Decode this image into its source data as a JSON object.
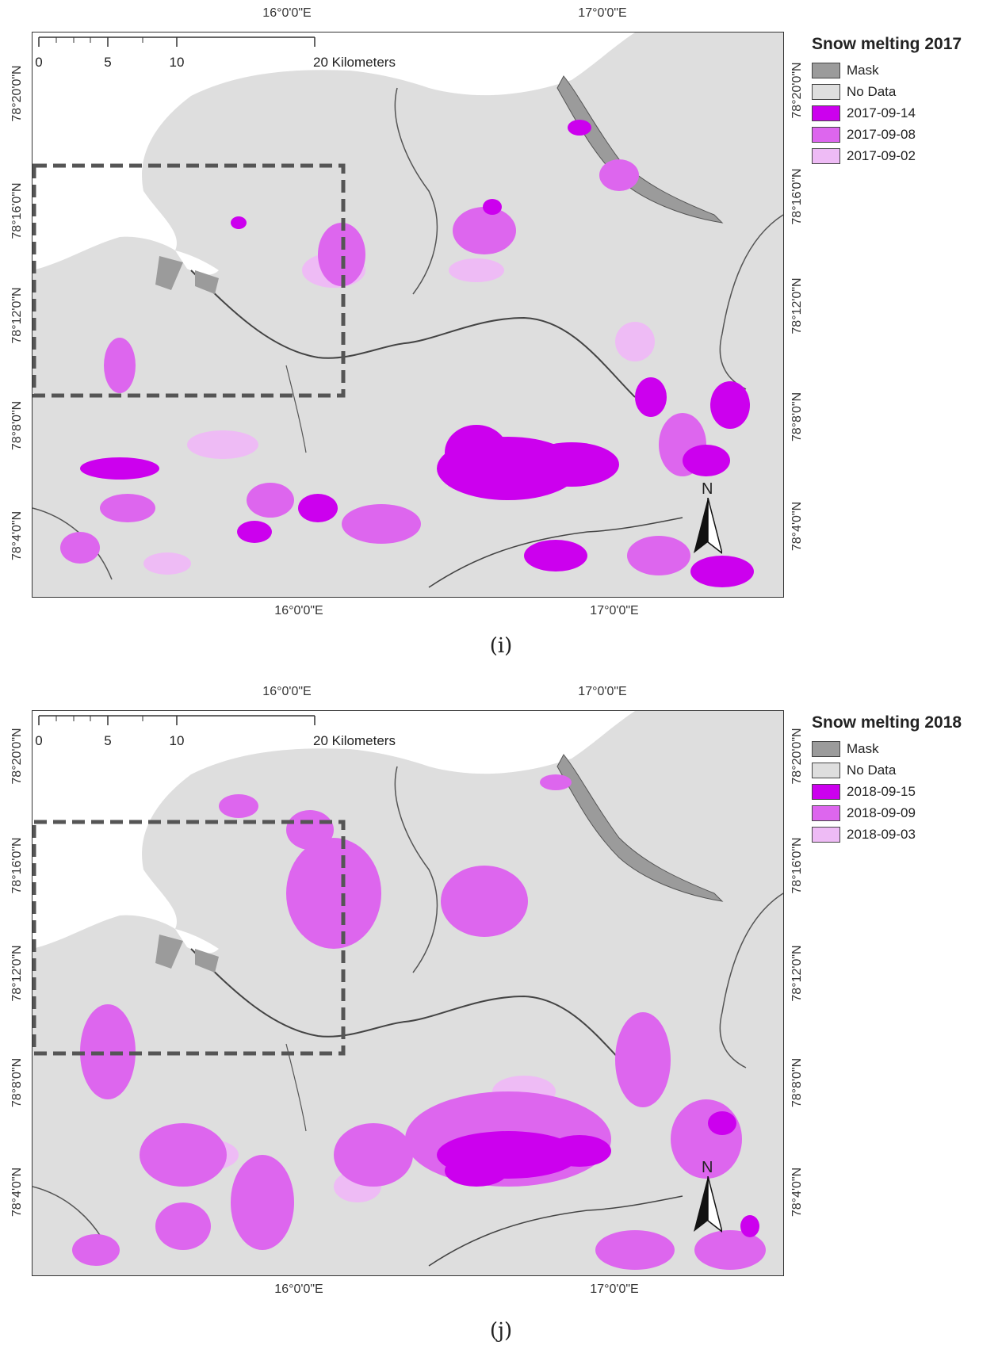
{
  "panels": [
    {
      "caption": "(i)",
      "legend": {
        "title": "Snow melting 2017",
        "items": [
          {
            "label": "Mask",
            "color": "#9b9b9b"
          },
          {
            "label": "No Data",
            "color": "#dedede"
          },
          {
            "label": "2017-09-14",
            "color": "#cc00ee"
          },
          {
            "label": "2017-09-08",
            "color": "#dd66ee"
          },
          {
            "label": "2017-09-02",
            "color": "#eebbf5"
          }
        ]
      },
      "lon_labels": [
        "16°0'0\"E",
        "17°0'0\"E"
      ],
      "lat_labels": [
        "78°20'0\"N",
        "78°16'0\"N",
        "78°12'0\"N",
        "78°8'0\"N",
        "78°4'0\"N"
      ],
      "scalebar": {
        "ticks": [
          "0",
          "5",
          "10",
          "20 Kilometers"
        ]
      },
      "north_label": "N"
    },
    {
      "caption": "(j)",
      "legend": {
        "title": "Snow melting 2018",
        "items": [
          {
            "label": "Mask",
            "color": "#9b9b9b"
          },
          {
            "label": "No Data",
            "color": "#dedede"
          },
          {
            "label": "2018-09-15",
            "color": "#cc00ee"
          },
          {
            "label": "2018-09-09",
            "color": "#dd66ee"
          },
          {
            "label": "2018-09-03",
            "color": "#eebbf5"
          }
        ]
      },
      "lon_labels": [
        "16°0'0\"E",
        "17°0'0\"E"
      ],
      "lat_labels": [
        "78°20'0\"N",
        "78°16'0\"N",
        "78°12'0\"N",
        "78°8'0\"N",
        "78°4'0\"N"
      ],
      "scalebar": {
        "ticks": [
          "0",
          "5",
          "10",
          "20 Kilometers"
        ]
      },
      "north_label": "N"
    }
  ]
}
